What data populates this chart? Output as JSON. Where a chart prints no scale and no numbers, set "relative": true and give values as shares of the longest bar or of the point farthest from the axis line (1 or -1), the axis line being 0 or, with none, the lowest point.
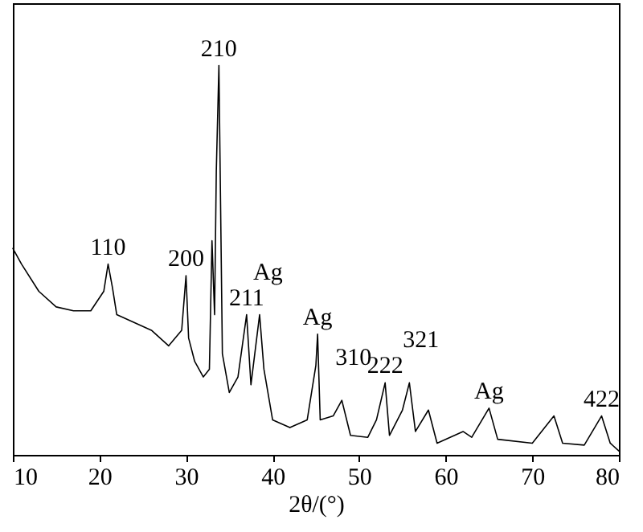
{
  "chart_data": {
    "type": "line",
    "relative": true,
    "xlabel": "2θ/(°)",
    "xlim": [
      10,
      80
    ],
    "xticks": [
      10,
      20,
      30,
      40,
      50,
      60,
      70,
      80
    ],
    "grid": false,
    "marker": "none",
    "line_style": "solid",
    "x": [
      10,
      11,
      13,
      15,
      17,
      19,
      20.5,
      21,
      21.5,
      22,
      24,
      26,
      28,
      29.5,
      30,
      30.3,
      31,
      32,
      32.7,
      33,
      33.3,
      33.5,
      33.8,
      34.2,
      35,
      36,
      37,
      37.5,
      38.5,
      39,
      40,
      42,
      44,
      45,
      45.2,
      45.5,
      47,
      48,
      49,
      51,
      52,
      53,
      53.5,
      55,
      55.8,
      56.5,
      58,
      59,
      62,
      63,
      65,
      66,
      70,
      72.5,
      73.5,
      76,
      78,
      79,
      80
    ],
    "series": [
      {
        "color": "#000000",
        "values": [
          0.53,
          0.49,
          0.42,
          0.38,
          0.37,
          0.37,
          0.42,
          0.49,
          0.43,
          0.36,
          0.34,
          0.32,
          0.28,
          0.32,
          0.46,
          0.3,
          0.24,
          0.2,
          0.22,
          0.55,
          0.36,
          0.73,
          1,
          0.26,
          0.16,
          0.2,
          0.36,
          0.18,
          0.36,
          0.22,
          0.09,
          0.07,
          0.09,
          0.23,
          0.31,
          0.09,
          0.1,
          0.14,
          0.05,
          0.045,
          0.09,
          0.185,
          0.05,
          0.115,
          0.185,
          0.06,
          0.115,
          0.03,
          0.06,
          0.045,
          0.12,
          0.04,
          0.03,
          0.1,
          0.03,
          0.025,
          0.1,
          0.03,
          0.01
        ]
      }
    ],
    "annotations": [
      {
        "text": "110",
        "x": 21,
        "y": 0.49
      },
      {
        "text": "200",
        "x": 30,
        "y": 0.46
      },
      {
        "text": "210",
        "x": 33.8,
        "y": 1
      },
      {
        "text": "211",
        "x": 37,
        "y": 0.36
      },
      {
        "text": "Ag",
        "x": 38.5,
        "y": 0.36
      },
      {
        "text": "Ag",
        "x": 45.2,
        "y": 0.31
      },
      {
        "text": "310",
        "x": 48,
        "y": 0.14
      },
      {
        "text": "222",
        "x": 53,
        "y": 0.185
      },
      {
        "text": "321",
        "x": 55.8,
        "y": 0.185
      },
      {
        "text": "Ag",
        "x": 65,
        "y": 0.12
      },
      {
        "text": "422",
        "x": 78,
        "y": 0.1
      }
    ]
  }
}
